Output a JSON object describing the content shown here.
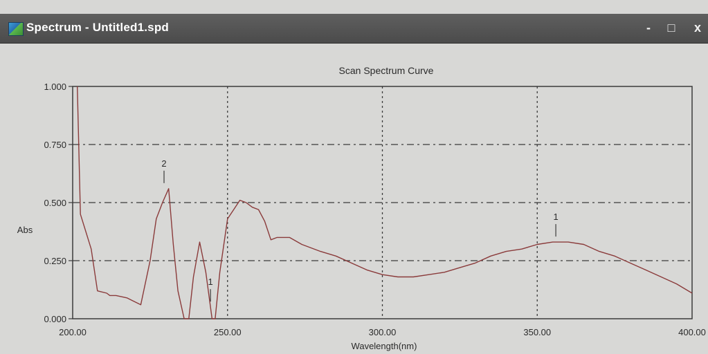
{
  "window": {
    "title": "Spectrum - Untitled1.spd",
    "icons": {
      "app": "spectrum-app-icon",
      "minimize": "minimize-icon",
      "maximize": "maximize-icon",
      "close": "close-icon"
    },
    "control_glyphs": {
      "minimize": "-",
      "maximize": "□",
      "close": "x"
    }
  },
  "chart_data": {
    "type": "line",
    "title": "Scan Spectrum Curve",
    "xlabel": "Wavelength(nm)",
    "ylabel": "Abs",
    "xlim": [
      200,
      400
    ],
    "ylim": [
      0,
      1
    ],
    "x_ticks": [
      "200.00",
      "250.00",
      "300.00",
      "350.00",
      "400.00"
    ],
    "y_ticks": [
      "0.000",
      "0.250",
      "0.500",
      "0.750",
      "1.000"
    ],
    "grid": true,
    "line_color": "#8a3a3a",
    "series": [
      {
        "x": [
          201.5,
          202.5,
          206,
          208,
          211,
          212,
          214,
          217.5,
          219,
          222,
          225,
          227,
          229,
          231,
          232.5,
          234,
          236,
          237.5,
          239,
          241,
          243,
          245,
          246,
          247.5,
          250,
          252,
          254,
          256,
          258,
          260,
          262,
          264,
          266,
          270,
          274,
          280,
          285,
          290,
          295,
          300,
          305,
          310,
          315,
          320,
          325,
          330,
          335,
          340,
          345,
          350,
          355,
          360,
          365,
          370,
          375,
          380,
          385,
          390,
          395,
          400
        ],
        "y": [
          1.0,
          0.45,
          0.3,
          0.12,
          0.11,
          0.1,
          0.1,
          0.09,
          0.08,
          0.06,
          0.25,
          0.43,
          0.5,
          0.56,
          0.32,
          0.12,
          0.0,
          0.0,
          0.18,
          0.33,
          0.2,
          0.0,
          0.0,
          0.2,
          0.43,
          0.47,
          0.51,
          0.5,
          0.48,
          0.47,
          0.42,
          0.34,
          0.35,
          0.35,
          0.32,
          0.29,
          0.27,
          0.24,
          0.21,
          0.19,
          0.18,
          0.18,
          0.19,
          0.2,
          0.22,
          0.24,
          0.27,
          0.29,
          0.3,
          0.32,
          0.33,
          0.33,
          0.32,
          0.29,
          0.27,
          0.24,
          0.21,
          0.18,
          0.15,
          0.11
        ]
      }
    ],
    "annotations": [
      {
        "label": "2",
        "x": 229.5,
        "y": 0.56
      },
      {
        "label": "1",
        "x": 244.5,
        "y": 0.05
      },
      {
        "label": "1",
        "x": 356,
        "y": 0.33
      }
    ]
  }
}
